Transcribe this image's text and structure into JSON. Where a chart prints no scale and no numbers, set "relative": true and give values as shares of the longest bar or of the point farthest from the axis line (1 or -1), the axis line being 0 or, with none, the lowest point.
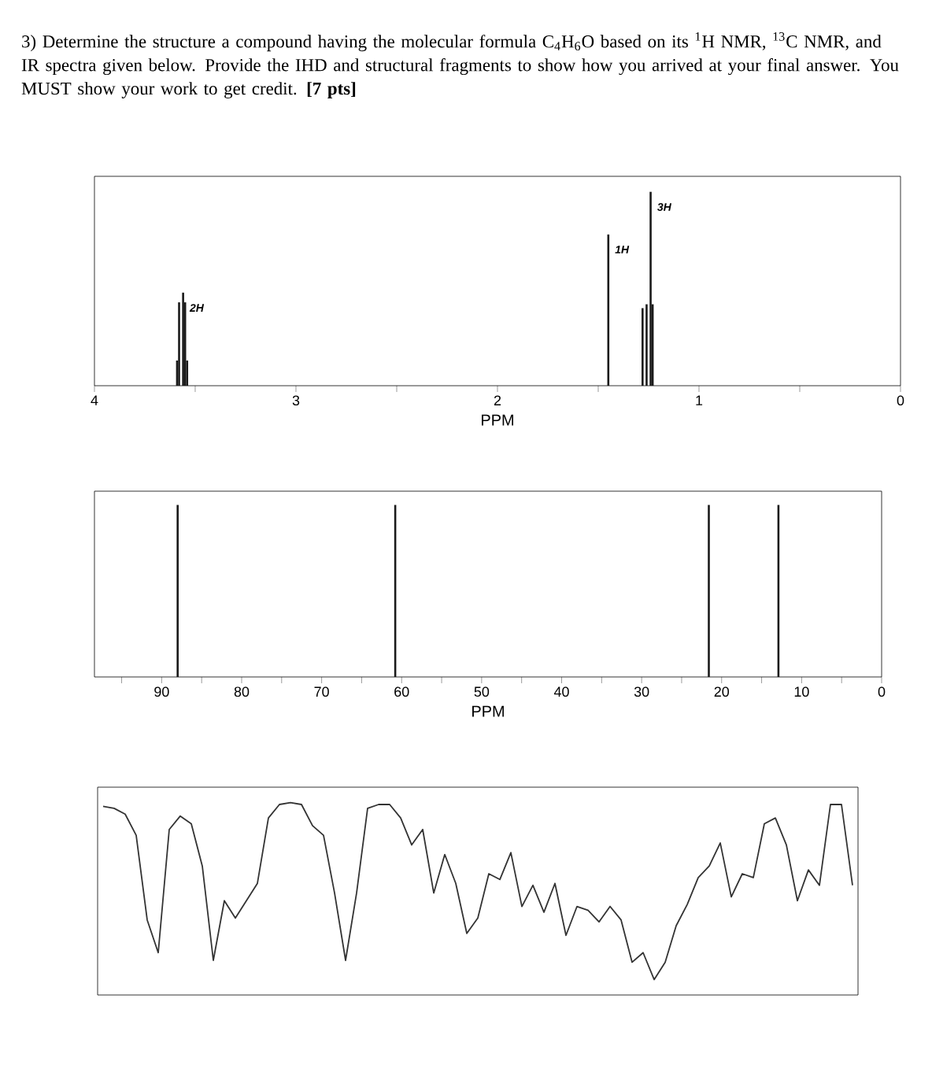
{
  "chart_data": [
    {
      "type": "bar",
      "title": "3) Determine the structure a compound having the molecular formula C$_{4}$H$_{6}$O based on its $^{1}$H NMR, $^{13}$C NMR, and IR spectra given below. Provide the IHD and structural fragments to show how you arrived at your final answer. You MUST show your work to get credit. **[7 pts]**",
      "relative": true,
      "color": "#1a1a1a",
      "x": [
        3.59,
        3.58,
        3.56,
        3.55,
        3.54,
        1.45,
        1.28,
        1.26,
        1.24,
        1.23
      ],
      "values": [
        0.13,
        0.43,
        0.48,
        0.43,
        0.13,
        0.78,
        0.4,
        0.42,
        1,
        0.42
      ],
      "xlim": [
        4,
        0
      ],
      "xticks": [
        4,
        {
          "value": 3.5,
          "label": null
        },
        3,
        {
          "value": 2.5,
          "label": null
        },
        2,
        {
          "value": 1.5,
          "label": null
        },
        1,
        {
          "value": 0.5,
          "label": null
        },
        0
      ],
      "xlabel": "PPM",
      "annotations": [
        {
          "text": "2H",
          "x": 3.56,
          "y": 0.48
        },
        {
          "text": "1H",
          "x": 1.45,
          "y": 0.78
        },
        {
          "text": "3H",
          "x": 1.24,
          "y": 1
        }
      ]
    },
    {
      "type": "bar",
      "relative": true,
      "color": "#1a1a1a",
      "x": [
        88.0,
        60.8,
        21.6,
        12.9
      ],
      "values": [
        1,
        1,
        1,
        1
      ],
      "xlim": [
        98.4,
        0
      ],
      "xticks": [
        {
          "value": 95,
          "label": null
        },
        90,
        {
          "value": 85,
          "label": null
        },
        80,
        {
          "value": 75,
          "label": null
        },
        70,
        {
          "value": 65,
          "label": null
        },
        60,
        {
          "value": 55,
          "label": null
        },
        50,
        {
          "value": 45,
          "label": null
        },
        40,
        {
          "value": 35,
          "label": null
        },
        30,
        {
          "value": 25,
          "label": null
        },
        20,
        {
          "value": 15,
          "label": null
        },
        10,
        {
          "value": 5,
          "label": null
        },
        0
      ],
      "xlabel": "PPM"
    },
    {
      "type": "line",
      "relative": true,
      "color": "#333333",
      "tick_labels": false,
      "categories": [
        null,
        null,
        null,
        null,
        null,
        null,
        null,
        null,
        null,
        null,
        null,
        null,
        null,
        null,
        null,
        null,
        null,
        null,
        null,
        null,
        null,
        null,
        null,
        null,
        null,
        null,
        null,
        null,
        null,
        null,
        null,
        null,
        null,
        null,
        null,
        null,
        null,
        null,
        null,
        null,
        null,
        null,
        null,
        null,
        null,
        null,
        null,
        null,
        null,
        null,
        null,
        null,
        null,
        null,
        null,
        null,
        null,
        null,
        null,
        null,
        null,
        null,
        null,
        null,
        null,
        null,
        null,
        null,
        null
      ],
      "values": [
        0.98,
        0.97,
        0.94,
        0.83,
        0.39,
        0.22,
        0.86,
        0.93,
        0.89,
        0.67,
        0.18,
        0.49,
        0.4,
        0.49,
        0.58,
        0.92,
        0.99,
        1,
        0.99,
        0.88,
        0.83,
        0.53,
        0.18,
        0.53,
        0.97,
        0.99,
        0.99,
        0.92,
        0.78,
        0.86,
        0.53,
        0.73,
        0.58,
        0.32,
        0.4,
        0.63,
        0.6,
        0.74,
        0.46,
        0.57,
        0.43,
        0.58,
        0.31,
        0.46,
        0.44,
        0.38,
        0.46,
        0.39,
        0.17,
        0.22,
        0.08,
        0.17,
        0.36,
        0.47,
        0.61,
        0.67,
        0.79,
        0.51,
        0.63,
        0.61,
        0.89,
        0.92,
        0.78,
        0.49,
        0.65,
        0.57,
        0.99,
        0.99,
        0.57
      ]
    }
  ]
}
